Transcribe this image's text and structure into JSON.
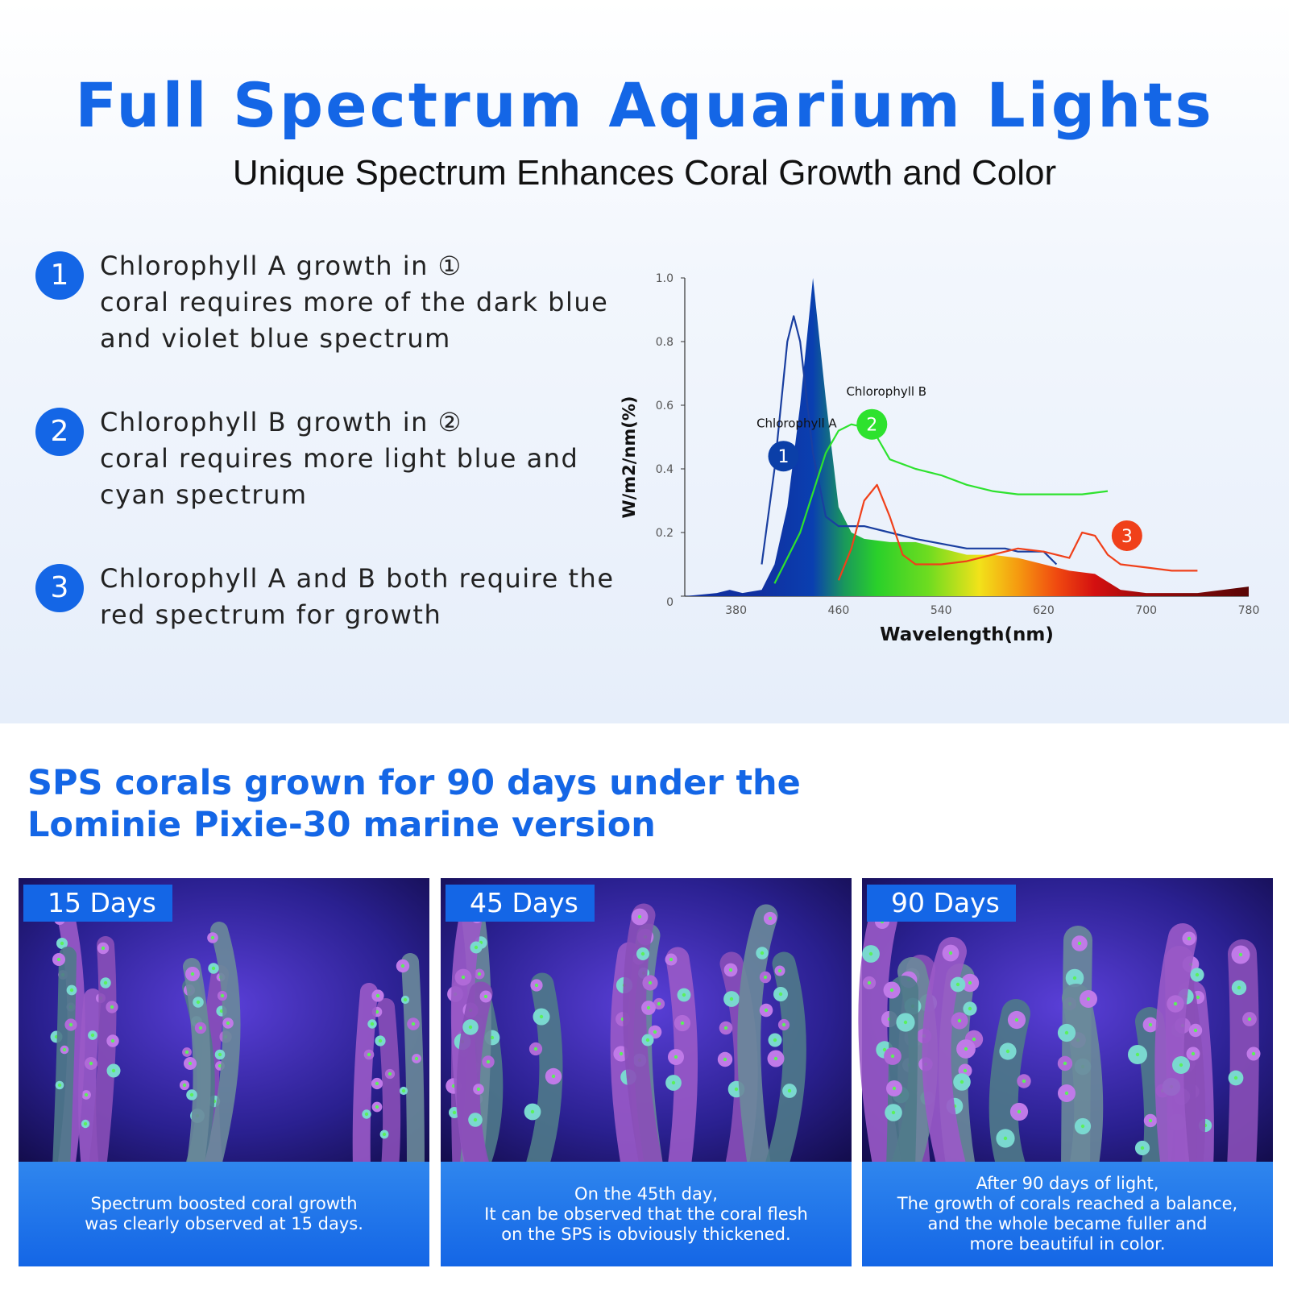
{
  "header": {
    "title": "Full Spectrum Aquarium Lights",
    "subtitle": "Unique Spectrum Enhances Coral Growth and Color"
  },
  "points": [
    {
      "number": "1",
      "lines": [
        "Chlorophyll A growth in ①",
        "coral requires more of the dark blue",
        "and violet blue spectrum"
      ]
    },
    {
      "number": "2",
      "lines": [
        "Chlorophyll B growth in ②",
        "coral requires more light blue and",
        "cyan spectrum"
      ]
    },
    {
      "number": "3",
      "lines": [
        "Chlorophyll A and B both require the",
        "red spectrum for growth"
      ]
    }
  ],
  "chart_data": {
    "type": "area",
    "xlabel": "Wavelength(nm)",
    "ylabel": "W/m2/nm(%)",
    "xlim": [
      340,
      780
    ],
    "ylim": [
      0,
      1.0
    ],
    "x_ticks": [
      "380",
      "460",
      "540",
      "620",
      "700",
      "780"
    ],
    "y_ticks": [
      "0",
      "0.2",
      "0.4",
      "0.6",
      "0.8",
      "1.0"
    ],
    "annotations": [
      {
        "label": "Chlorophyll A",
        "marker": "1",
        "color": "#0b3fa8"
      },
      {
        "label": "Chlorophyll B",
        "marker": "2",
        "color": "#2ee22e"
      },
      {
        "label": "",
        "marker": "3",
        "color": "#f0401a"
      }
    ],
    "series": [
      {
        "color": "#1f66d0",
        "x": [
          340,
          365,
          375,
          385,
          400,
          410,
          420,
          430,
          440,
          450,
          460,
          470,
          480,
          500,
          520,
          540,
          560,
          580,
          600,
          620,
          640,
          660,
          680,
          700,
          720,
          740,
          760,
          780
        ],
        "y": [
          0,
          0.01,
          0.02,
          0.01,
          0.02,
          0.1,
          0.28,
          0.6,
          1.0,
          0.62,
          0.28,
          0.2,
          0.18,
          0.17,
          0.17,
          0.15,
          0.13,
          0.13,
          0.12,
          0.1,
          0.08,
          0.07,
          0.02,
          0.01,
          0.01,
          0.01,
          0.02,
          0.03
        ]
      },
      {
        "color": "#1a3fa0",
        "x": [
          400,
          410,
          420,
          425,
          430,
          440,
          450,
          460,
          480,
          500,
          520,
          560,
          590,
          600,
          620,
          630
        ],
        "y": [
          0.1,
          0.4,
          0.8,
          0.88,
          0.8,
          0.45,
          0.25,
          0.22,
          0.22,
          0.2,
          0.18,
          0.15,
          0.15,
          0.14,
          0.14,
          0.1
        ]
      },
      {
        "color": "#2ee22e",
        "x": [
          410,
          430,
          450,
          460,
          470,
          480,
          490,
          500,
          520,
          540,
          560,
          580,
          600,
          620,
          650,
          670
        ],
        "y": [
          0.04,
          0.2,
          0.45,
          0.52,
          0.54,
          0.53,
          0.5,
          0.43,
          0.4,
          0.38,
          0.35,
          0.33,
          0.32,
          0.32,
          0.32,
          0.33
        ]
      },
      {
        "color": "#f0401a",
        "x": [
          460,
          470,
          480,
          490,
          500,
          510,
          520,
          540,
          560,
          580,
          600,
          620,
          640,
          650,
          660,
          670,
          680,
          700,
          720,
          740
        ],
        "y": [
          0.05,
          0.15,
          0.3,
          0.35,
          0.25,
          0.13,
          0.1,
          0.1,
          0.11,
          0.13,
          0.15,
          0.14,
          0.12,
          0.2,
          0.19,
          0.13,
          0.1,
          0.09,
          0.08,
          0.08
        ]
      }
    ]
  },
  "section2": {
    "heading_lines": [
      "SPS corals grown for 90 days under the",
      "Lominie Pixie-30 marine version"
    ]
  },
  "cards": [
    {
      "badge": "15 Days",
      "caption_lines": [
        "Spectrum boosted coral growth",
        "was clearly observed at 15 days."
      ]
    },
    {
      "badge": "45 Days",
      "caption_lines": [
        "On the 45th day,",
        "It can be observed that the coral flesh",
        "on the SPS is obviously thickened."
      ]
    },
    {
      "badge": "90 Days",
      "caption_lines": [
        "After 90 days of light,",
        "The growth of corals reached a balance,",
        "and the whole became fuller and",
        "more beautiful in color."
      ]
    }
  ]
}
